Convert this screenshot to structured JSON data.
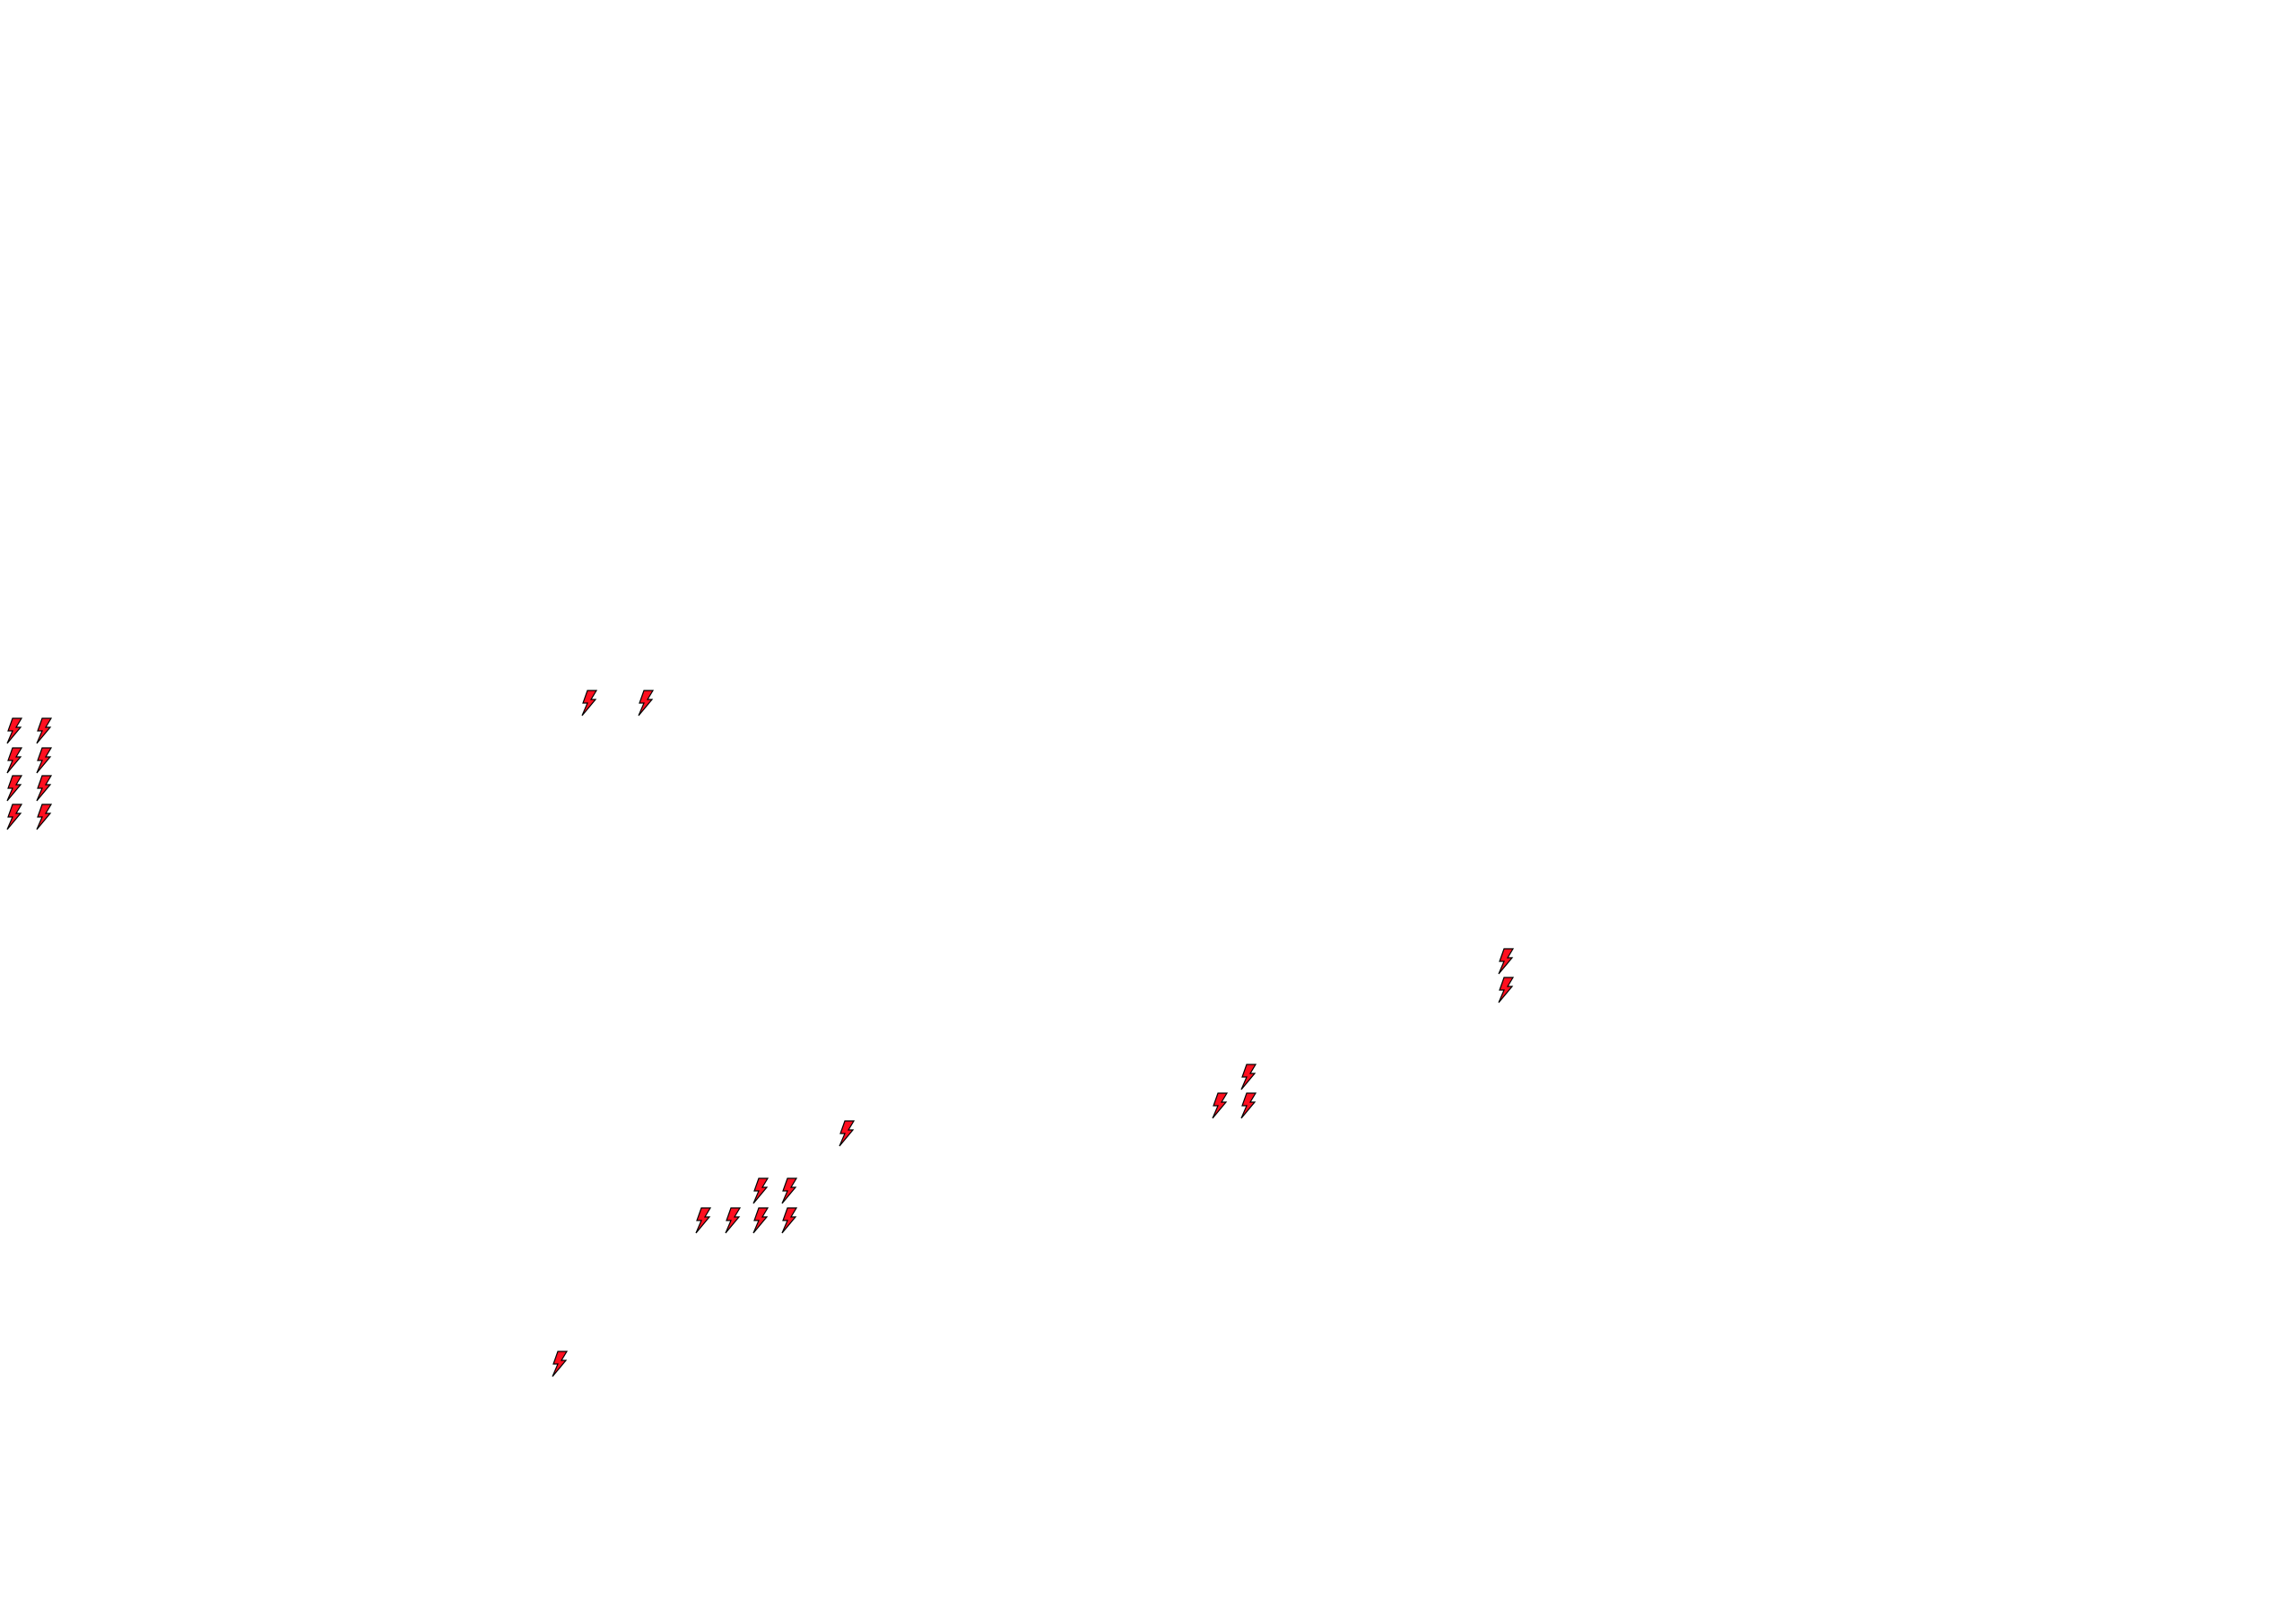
{
  "icons": {
    "name": "lightning-bolt-icon",
    "fill_color": "#ff0f1f",
    "stroke_color": "#000000",
    "count": 23
  }
}
